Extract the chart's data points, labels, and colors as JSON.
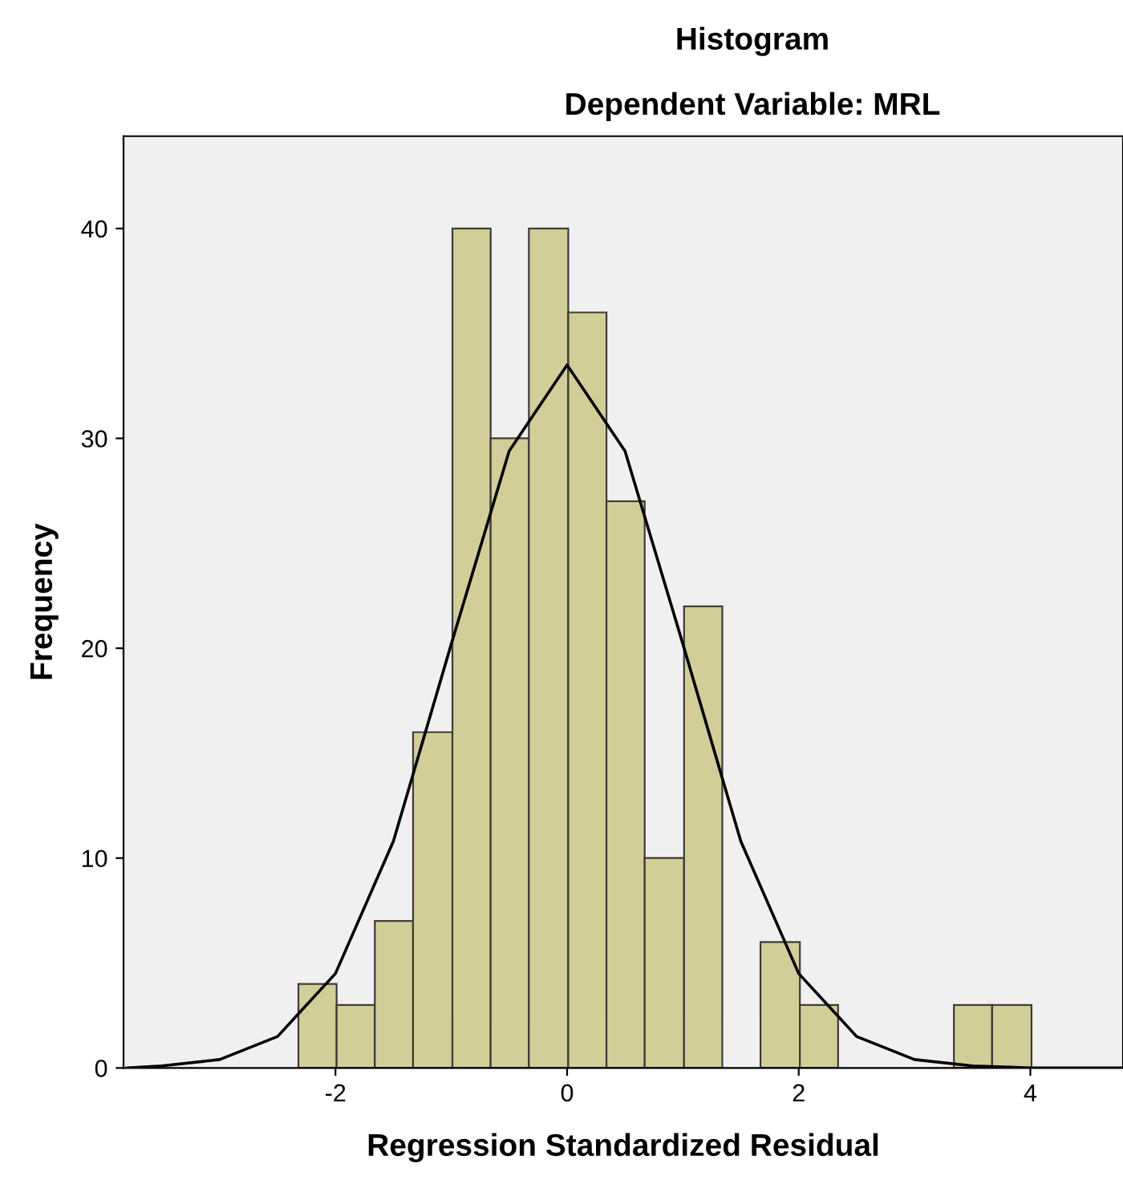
{
  "chart_data": {
    "type": "histogram",
    "title": "Histogram",
    "subtitle": "Dependent Variable: MRL",
    "xlabel": "Regression Standardized Residual",
    "ylabel": "Frequency",
    "bins": [
      -2.32,
      -1.99,
      -1.66,
      -1.33,
      -0.99,
      -0.66,
      -0.33,
      0.01,
      0.34,
      0.67,
      1.01,
      1.34,
      1.67,
      2.01,
      2.34,
      2.67,
      3.01,
      3.34,
      3.67,
      4.01
    ],
    "values": [
      4,
      3,
      7,
      16,
      40,
      30,
      40,
      36,
      27,
      10,
      22,
      0,
      6,
      3,
      0,
      0,
      0,
      3,
      3
    ],
    "color": "#d3ce97",
    "series": [
      {
        "type": "line",
        "color": "#000000",
        "x": [
          -3.8,
          -3.5,
          -3,
          -2.5,
          -2,
          -1.5,
          -1,
          -0.5,
          0,
          0.5,
          1,
          1.5,
          2,
          2.5,
          3,
          3.5,
          4,
          4.5,
          4.8
        ],
        "values": [
          0,
          0.1,
          0.4,
          1.5,
          4.5,
          10.8,
          20.2,
          29.4,
          33.5,
          29.4,
          20.2,
          10.8,
          4.5,
          1.5,
          0.4,
          0.1,
          0,
          0,
          0
        ]
      }
    ],
    "xlim": [
      -3.83,
      4.8
    ],
    "ylim": [
      0,
      44.4
    ],
    "xticks": [
      -2,
      0,
      2,
      4
    ],
    "yticks": [
      0,
      10,
      20,
      30,
      40
    ],
    "grid": false,
    "legend": false
  }
}
